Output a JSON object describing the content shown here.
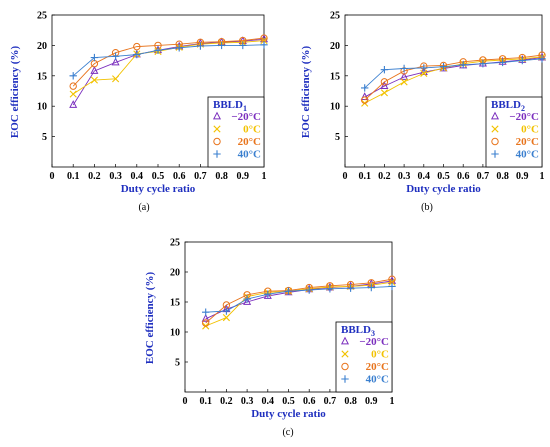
{
  "chart_data": [
    {
      "type": "line",
      "caption": "(a)",
      "ylabel": "EOC efficiency (%)",
      "xlabel": "Duty cycle ratio",
      "xlim": [
        0,
        1
      ],
      "ylim": [
        0,
        25
      ],
      "xticks": [
        "0",
        "0.1",
        "0.2",
        "0.3",
        "0.4",
        "0.5",
        "0.6",
        "0.7",
        "0.8",
        "0.9",
        "1"
      ],
      "yticks": [
        "5",
        "10",
        "15",
        "20",
        "25"
      ],
      "legend": {
        "title": "BBLD",
        "subscript": "1",
        "position": "lower-right"
      },
      "x": [
        0.1,
        0.2,
        0.3,
        0.4,
        0.5,
        0.6,
        0.7,
        0.8,
        0.9,
        1.0
      ],
      "series": [
        {
          "name": "−20°C",
          "color": "#7b2fbe",
          "marker": "triangle",
          "values": [
            10.2,
            15.8,
            17.2,
            18.5,
            19.2,
            19.8,
            20.3,
            20.5,
            20.7,
            21.0
          ]
        },
        {
          "name": "0°C",
          "color": "#f2c200",
          "marker": "x",
          "values": [
            12.0,
            14.3,
            14.5,
            18.6,
            19.0,
            19.7,
            20.2,
            20.4,
            20.5,
            20.8
          ]
        },
        {
          "name": "20°C",
          "color": "#e8741c",
          "marker": "circle",
          "values": [
            13.3,
            17.0,
            18.8,
            19.8,
            20.0,
            20.2,
            20.5,
            20.6,
            20.8,
            21.2
          ]
        },
        {
          "name": "40°C",
          "color": "#3a7fcf",
          "marker": "plus",
          "values": [
            15.0,
            18.0,
            18.2,
            18.5,
            19.2,
            19.6,
            19.9,
            20.0,
            20.0,
            20.1
          ]
        }
      ]
    },
    {
      "type": "line",
      "caption": "(b)",
      "ylabel": "EOC efficiency (%)",
      "xlabel": "Duty cycle ratio",
      "xlim": [
        0,
        1
      ],
      "ylim": [
        0,
        25
      ],
      "xticks": [
        "0",
        "0.1",
        "0.2",
        "0.3",
        "0.4",
        "0.5",
        "0.6",
        "0.7",
        "0.8",
        "0.9",
        "1"
      ],
      "yticks": [
        "5",
        "10",
        "15",
        "20",
        "25"
      ],
      "legend": {
        "title": "BBLD",
        "subscript": "2",
        "position": "lower-right"
      },
      "x": [
        0.1,
        0.2,
        0.3,
        0.4,
        0.5,
        0.6,
        0.7,
        0.8,
        0.9,
        1.0
      ],
      "series": [
        {
          "name": "−20°C",
          "color": "#7b2fbe",
          "marker": "triangle",
          "values": [
            11.5,
            13.3,
            14.8,
            15.6,
            16.2,
            16.7,
            17.0,
            17.3,
            17.6,
            18.0
          ]
        },
        {
          "name": "0°C",
          "color": "#f2c200",
          "marker": "x",
          "values": [
            10.5,
            12.2,
            14.0,
            15.4,
            16.3,
            17.0,
            17.4,
            17.6,
            17.8,
            18.1
          ]
        },
        {
          "name": "20°C",
          "color": "#e8741c",
          "marker": "circle",
          "values": [
            11.0,
            14.0,
            15.8,
            16.6,
            16.7,
            17.3,
            17.6,
            17.8,
            18.0,
            18.4
          ]
        },
        {
          "name": "40°C",
          "color": "#3a7fcf",
          "marker": "plus",
          "values": [
            13.0,
            16.0,
            16.2,
            16.3,
            16.5,
            16.8,
            17.0,
            17.2,
            17.5,
            17.8
          ]
        }
      ]
    },
    {
      "type": "line",
      "caption": "(c)",
      "ylabel": "EOC efficiency (%)",
      "xlabel": "Duty cycle ratio",
      "xlim": [
        0,
        1
      ],
      "ylim": [
        0,
        25
      ],
      "xticks": [
        "0",
        "0.1",
        "0.2",
        "0.3",
        "0.4",
        "0.5",
        "0.6",
        "0.7",
        "0.8",
        "0.9",
        "1"
      ],
      "yticks": [
        "5",
        "10",
        "15",
        "20",
        "25"
      ],
      "legend": {
        "title": "BBLD",
        "subscript": "3",
        "position": "lower-right"
      },
      "x": [
        0.1,
        0.2,
        0.3,
        0.4,
        0.5,
        0.6,
        0.7,
        0.8,
        0.9,
        1.0
      ],
      "series": [
        {
          "name": "−20°C",
          "color": "#7b2fbe",
          "marker": "triangle",
          "values": [
            12.2,
            13.8,
            15.0,
            16.0,
            16.6,
            17.1,
            17.4,
            17.6,
            18.0,
            18.5
          ]
        },
        {
          "name": "0°C",
          "color": "#f2c200",
          "marker": "x",
          "values": [
            11.0,
            12.4,
            15.9,
            16.6,
            16.8,
            17.2,
            17.5,
            17.6,
            17.8,
            18.3
          ]
        },
        {
          "name": "20°C",
          "color": "#e8741c",
          "marker": "circle",
          "values": [
            11.5,
            14.5,
            16.2,
            16.8,
            16.9,
            17.4,
            17.7,
            17.9,
            18.2,
            18.8
          ]
        },
        {
          "name": "40°C",
          "color": "#3a7fcf",
          "marker": "plus",
          "values": [
            13.3,
            13.5,
            15.5,
            16.3,
            16.8,
            17.0,
            17.2,
            17.3,
            17.4,
            17.6
          ]
        }
      ]
    }
  ]
}
